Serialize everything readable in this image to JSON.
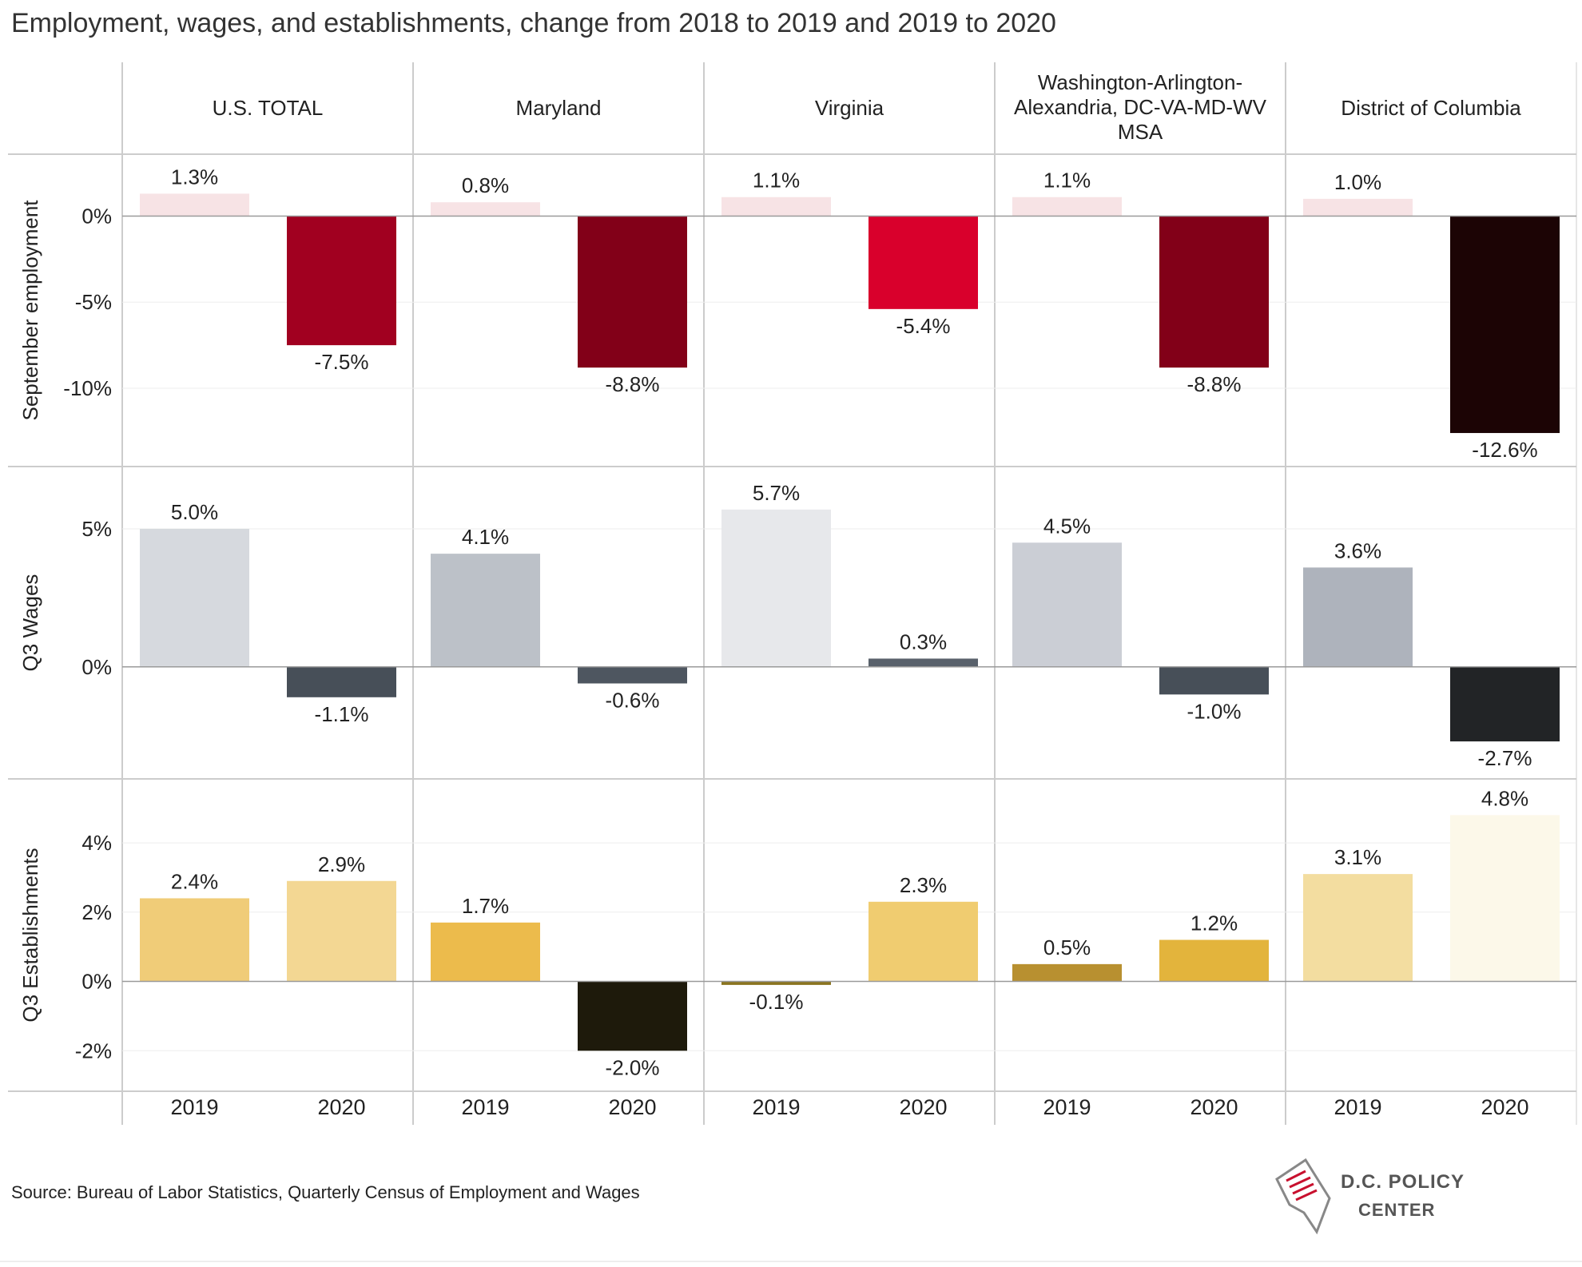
{
  "title": "Employment, wages, and establishments, change from 2018 to 2019 and 2019  to 2020",
  "source": "Source: Bureau of Labor Statistics, Quarterly Census of Employment and Wages",
  "logo": {
    "line1": "D.C. POLICY",
    "line2": "CENTER",
    "icon": "dc-map-icon"
  },
  "chart_data": {
    "type": "bar",
    "layout": "small-multiples grid",
    "columns": [
      "U.S. TOTAL",
      "Maryland",
      "Virginia",
      "Washington-Arlington-Alexandria, DC-VA-MD-WV MSA",
      "District of Columbia"
    ],
    "x_categories": [
      "2019",
      "2020"
    ],
    "rows": [
      {
        "label": "September employment",
        "ylim": [
          -14.5,
          3.5
        ],
        "ticks": [
          0,
          -5,
          -10
        ],
        "tick_labels": [
          "0%",
          "-5%",
          "-10%"
        ],
        "values": [
          [
            1.3,
            -7.5
          ],
          [
            0.8,
            -8.8
          ],
          [
            1.1,
            -5.4
          ],
          [
            1.1,
            -8.8
          ],
          [
            1.0,
            -12.6
          ]
        ],
        "labels": [
          [
            "1.3%",
            "-7.5%"
          ],
          [
            "0.8%",
            "-8.8%"
          ],
          [
            "1.1%",
            "-5.4%"
          ],
          [
            "1.1%",
            "-8.8%"
          ],
          [
            "1.0%",
            "-12.6%"
          ]
        ],
        "colors": [
          [
            "#f7e3e5",
            "#a10020"
          ],
          [
            "#f7e3e5",
            "#820018"
          ],
          [
            "#f7e3e5",
            "#d9002c"
          ],
          [
            "#f7e3e5",
            "#820018"
          ],
          [
            "#f7e3e5",
            "#1c0405"
          ]
        ]
      },
      {
        "label": "Q3 Wages",
        "ylim": [
          -4.0,
          7.2
        ],
        "ticks": [
          5,
          0
        ],
        "tick_labels": [
          "5%",
          "0%"
        ],
        "values": [
          [
            5.0,
            -1.1
          ],
          [
            4.1,
            -0.6
          ],
          [
            5.7,
            0.3
          ],
          [
            4.5,
            -1.0
          ],
          [
            3.6,
            -2.7
          ]
        ],
        "labels": [
          [
            "5.0%",
            "-1.1%"
          ],
          [
            "4.1%",
            "-0.6%"
          ],
          [
            "5.7%",
            "0.3%"
          ],
          [
            "4.5%",
            "-1.0%"
          ],
          [
            "3.6%",
            "-2.7%"
          ]
        ],
        "colors": [
          [
            "#d6d9de",
            "#474f58"
          ],
          [
            "#bcc1c8",
            "#4e5660"
          ],
          [
            "#e7e8eb",
            "#59616b"
          ],
          [
            "#cbced5",
            "#474f58"
          ],
          [
            "#aeb3bc",
            "#222426"
          ]
        ]
      },
      {
        "label": "Q3 Establishments",
        "ylim": [
          -3.1,
          5.8
        ],
        "ticks": [
          4,
          2,
          0,
          -2
        ],
        "tick_labels": [
          "4%",
          "2%",
          "0%",
          "-2%"
        ],
        "values": [
          [
            2.4,
            2.9
          ],
          [
            1.7,
            -2.0
          ],
          [
            -0.1,
            2.3
          ],
          [
            0.5,
            1.2
          ],
          [
            3.1,
            4.8
          ]
        ],
        "labels": [
          [
            "2.4%",
            "2.9%"
          ],
          [
            "1.7%",
            "-2.0%"
          ],
          [
            "-0.1%",
            "2.3%"
          ],
          [
            "0.5%",
            "1.2%"
          ],
          [
            "3.1%",
            "4.8%"
          ]
        ],
        "colors": [
          [
            "#f0cc78",
            "#f3d793"
          ],
          [
            "#ecbb4c",
            "#1e1a0b"
          ],
          [
            "#8a7420",
            "#f0cc70"
          ],
          [
            "#b89030",
            "#e3b43c"
          ],
          [
            "#f3dda0",
            "#fcf8e9"
          ]
        ]
      }
    ],
    "grid": true
  }
}
